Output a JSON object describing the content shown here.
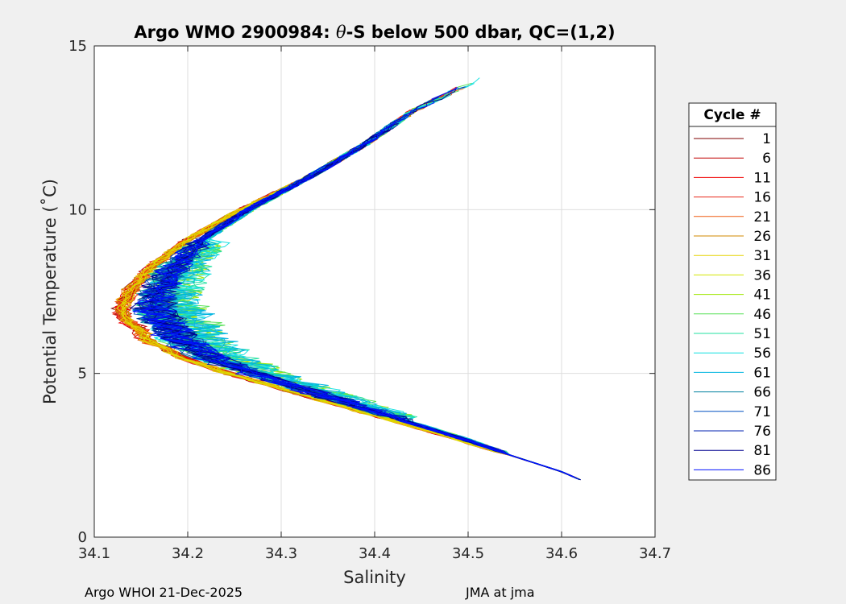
{
  "chart_data": {
    "type": "line",
    "title_prefix": "Argo WMO 2900984: ",
    "title_theta": "θ",
    "title_suffix": "-S below 500 dbar,  QC=(1,2)",
    "xlabel": "Salinity",
    "ylabel": "Potential Temperature (˚C)",
    "xlim": [
      34.1,
      34.7
    ],
    "ylim": [
      0,
      15
    ],
    "xticks": [
      "34.1",
      "34.2",
      "34.3",
      "34.4",
      "34.5",
      "34.6",
      "34.7"
    ],
    "yticks": [
      "0",
      "5",
      "10",
      "15"
    ],
    "grid": true,
    "legend": {
      "title": "Cycle #",
      "position": "right-outside",
      "entries": [
        {
          "label": "1",
          "color": "#7f0000"
        },
        {
          "label": "6",
          "color": "#c00000"
        },
        {
          "label": "11",
          "color": "#f00000"
        },
        {
          "label": "16",
          "color": "#e8281a"
        },
        {
          "label": "21",
          "color": "#f05a10"
        },
        {
          "label": "26",
          "color": "#d08a00"
        },
        {
          "label": "31",
          "color": "#e6d200"
        },
        {
          "label": "36",
          "color": "#d2e600"
        },
        {
          "label": "41",
          "color": "#9fe600"
        },
        {
          "label": "46",
          "color": "#55e055"
        },
        {
          "label": "51",
          "color": "#20e0a0"
        },
        {
          "label": "56",
          "color": "#10e0e0"
        },
        {
          "label": "61",
          "color": "#00b4e0"
        },
        {
          "label": "66",
          "color": "#0080a0"
        },
        {
          "label": "71",
          "color": "#0050c0"
        },
        {
          "label": "76",
          "color": "#0020b0"
        },
        {
          "label": "81",
          "color": "#00008f"
        },
        {
          "label": "86",
          "color": "#0010ff"
        }
      ]
    },
    "profile_templates": {
      "warm_branch": {
        "t": [
          14.4,
          13.0,
          12.0,
          11.0,
          10.0,
          9.0,
          8.2,
          7.5,
          7.0,
          6.7,
          6.4
        ],
        "s": [
          34.54,
          34.44,
          34.39,
          34.33,
          34.26,
          34.2,
          34.165,
          34.145,
          34.138,
          34.14,
          34.15
        ]
      },
      "deep_branch": {
        "t": [
          6.0,
          5.5,
          5.0,
          4.5,
          4.0,
          3.5,
          3.0,
          2.5,
          2.0,
          1.75
        ],
        "s": [
          34.17,
          34.2,
          34.25,
          34.31,
          34.37,
          34.43,
          34.49,
          34.545,
          34.6,
          34.62
        ]
      }
    }
  },
  "footer": {
    "left": "Argo WHOI 21-Dec-2025",
    "right": "JMA at jma"
  }
}
